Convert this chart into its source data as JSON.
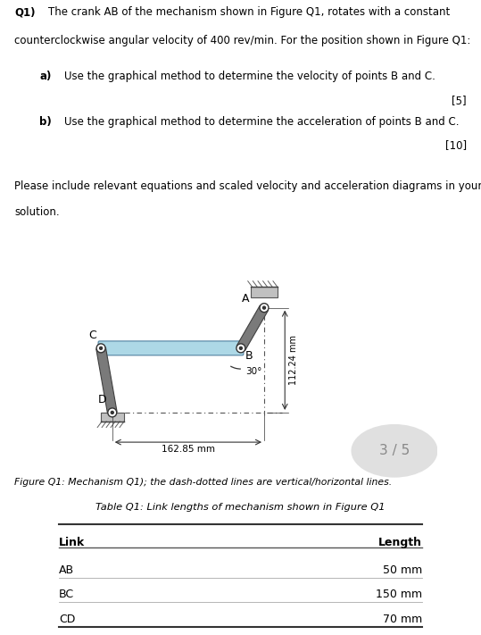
{
  "bg_color": "#ffffff",
  "text_color": "#000000",
  "fig_caption": "Figure Q1: Mechanism Q1); the dash-dotted lines are vertical/horizontal lines.",
  "dim_162": "162.85 mm",
  "dim_112": "112.24 mm",
  "angle_label": "30°",
  "label_A": "A",
  "label_B": "B",
  "label_C": "C",
  "label_D": "D",
  "watermark": "3 / 5",
  "table_title": "Table Q1: Link lengths of mechanism shown in Figure Q1",
  "table_headers": [
    "Link",
    "Length"
  ],
  "table_rows": [
    [
      "AB",
      "50 mm"
    ],
    [
      "BC",
      "150 mm"
    ],
    [
      "CD",
      "70 mm"
    ]
  ],
  "link_color": "#808080",
  "bar_color": "#add8e6",
  "ground_color": "#a0a0a0"
}
